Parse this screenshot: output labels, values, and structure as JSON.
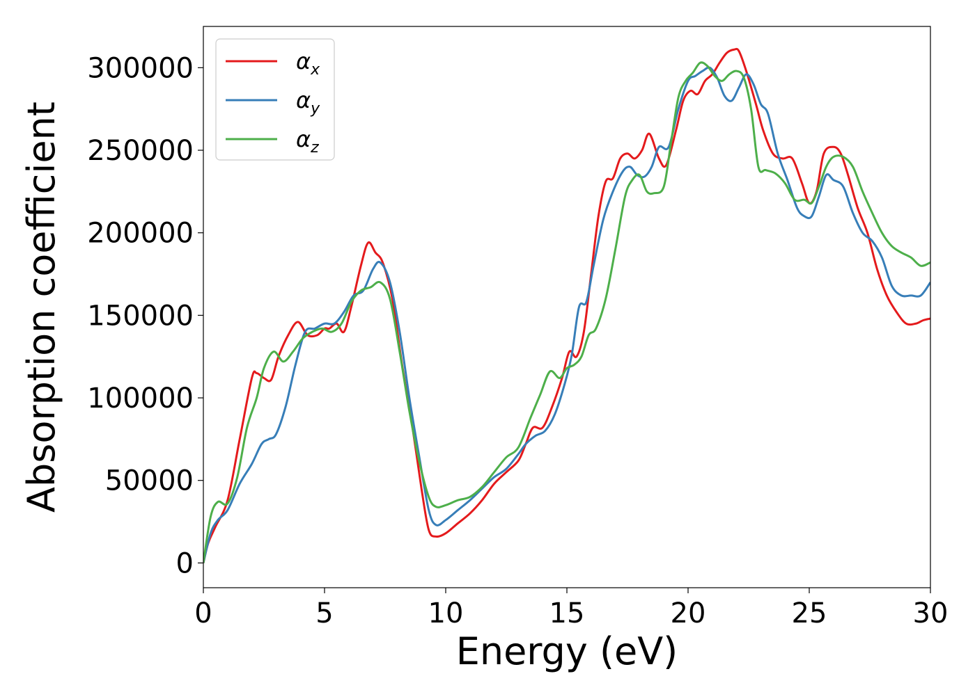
{
  "chart_data": {
    "type": "line",
    "xlabel": "Energy (eV)",
    "ylabel": "Absorption coefficient",
    "xlim": [
      0,
      30
    ],
    "ylim": [
      -15000,
      325000
    ],
    "xticks": [
      0,
      5,
      10,
      15,
      20,
      25,
      30
    ],
    "yticks": [
      0,
      50000,
      100000,
      150000,
      200000,
      250000,
      300000
    ],
    "xtick_labels": [
      "0",
      "5",
      "10",
      "15",
      "20",
      "25",
      "30"
    ],
    "ytick_labels": [
      "0",
      "50000",
      "100000",
      "150000",
      "200000",
      "250000",
      "300000"
    ],
    "grid": false,
    "legend_position": "top-left",
    "series": [
      {
        "name": "α",
        "subscript": "x",
        "color": "#e41a1c",
        "x": [
          0,
          0.2,
          0.5,
          1.0,
          1.5,
          2.0,
          2.2,
          2.5,
          2.8,
          3.1,
          3.5,
          3.9,
          4.3,
          4.7,
          5.0,
          5.2,
          5.5,
          5.8,
          6.1,
          6.5,
          6.8,
          7.1,
          7.4,
          7.8,
          8.2,
          8.6,
          9.0,
          9.3,
          9.6,
          10.0,
          10.5,
          11.0,
          11.5,
          12.0,
          12.5,
          13.0,
          13.3,
          13.6,
          14.0,
          14.4,
          14.8,
          15.1,
          15.4,
          15.7,
          16.0,
          16.3,
          16.6,
          16.9,
          17.2,
          17.5,
          17.8,
          18.1,
          18.4,
          18.8,
          19.1,
          19.5,
          19.8,
          20.1,
          20.4,
          20.7,
          21.0,
          21.3,
          21.6,
          21.9,
          22.1,
          22.4,
          22.8,
          23.1,
          23.5,
          23.9,
          24.3,
          24.7,
          25.0,
          25.3,
          25.6,
          26.0,
          26.3,
          26.6,
          27.0,
          27.4,
          27.8,
          28.2,
          28.6,
          29.0,
          29.4,
          29.7,
          30.0
        ],
        "values": [
          0,
          12000,
          22000,
          38000,
          75000,
          112000,
          115000,
          112000,
          111000,
          125000,
          138000,
          146000,
          138000,
          138000,
          142000,
          142000,
          145000,
          140000,
          155000,
          180000,
          194000,
          188000,
          182000,
          160000,
          120000,
          85000,
          45000,
          20000,
          16000,
          18000,
          24000,
          30000,
          38000,
          48000,
          55000,
          62000,
          72000,
          82000,
          82000,
          95000,
          112000,
          128000,
          125000,
          140000,
          175000,
          210000,
          231000,
          233000,
          245000,
          248000,
          245000,
          250000,
          260000,
          245000,
          241000,
          262000,
          280000,
          286000,
          284000,
          292000,
          296000,
          303000,
          309000,
          311000,
          310000,
          298000,
          278000,
          262000,
          248000,
          245000,
          245000,
          230000,
          218000,
          225000,
          248000,
          252000,
          248000,
          235000,
          215000,
          200000,
          178000,
          162000,
          152000,
          145000,
          145000,
          147000,
          148000
        ]
      },
      {
        "name": "α",
        "subscript": "y",
        "color": "#377eb8",
        "x": [
          0,
          0.3,
          0.6,
          1.0,
          1.5,
          2.0,
          2.4,
          2.7,
          3.0,
          3.4,
          3.8,
          4.2,
          4.6,
          5.0,
          5.4,
          5.8,
          6.2,
          6.6,
          7.0,
          7.3,
          7.7,
          8.1,
          8.5,
          8.9,
          9.3,
          9.6,
          10.0,
          10.5,
          11.0,
          11.5,
          12.0,
          12.5,
          13.0,
          13.3,
          13.7,
          14.1,
          14.5,
          14.9,
          15.2,
          15.5,
          15.8,
          16.1,
          16.5,
          16.9,
          17.3,
          17.6,
          17.9,
          18.2,
          18.5,
          18.8,
          19.2,
          19.6,
          20.0,
          20.3,
          20.6,
          20.9,
          21.2,
          21.5,
          21.8,
          22.1,
          22.4,
          22.7,
          23.0,
          23.3,
          23.7,
          24.1,
          24.5,
          24.8,
          25.1,
          25.4,
          25.7,
          26.0,
          26.4,
          26.8,
          27.2,
          27.6,
          28.0,
          28.4,
          28.8,
          29.2,
          29.6,
          30.0
        ],
        "values": [
          0,
          18000,
          26000,
          32000,
          48000,
          60000,
          72000,
          75000,
          78000,
          95000,
          120000,
          140000,
          142000,
          145000,
          145000,
          152000,
          162000,
          165000,
          178000,
          182000,
          170000,
          140000,
          100000,
          65000,
          32000,
          23000,
          26000,
          32000,
          38000,
          45000,
          52000,
          57000,
          66000,
          72000,
          77000,
          80000,
          90000,
          108000,
          126000,
          155000,
          158000,
          180000,
          208000,
          225000,
          237000,
          240000,
          235000,
          234000,
          240000,
          252000,
          252000,
          275000,
          292000,
          295000,
          298000,
          300000,
          294000,
          283000,
          280000,
          288000,
          296000,
          290000,
          278000,
          272000,
          248000,
          232000,
          215000,
          210000,
          210000,
          222000,
          235000,
          232000,
          228000,
          212000,
          200000,
          195000,
          185000,
          168000,
          162000,
          162000,
          162000,
          170000
        ]
      },
      {
        "name": "α",
        "subscript": "z",
        "color": "#4daf4a",
        "x": [
          0,
          0.3,
          0.6,
          1.0,
          1.4,
          1.8,
          2.2,
          2.5,
          2.9,
          3.3,
          3.7,
          4.1,
          4.5,
          4.9,
          5.3,
          5.7,
          6.1,
          6.5,
          6.9,
          7.3,
          7.7,
          8.1,
          8.5,
          8.9,
          9.3,
          9.6,
          10.0,
          10.5,
          11.0,
          11.5,
          12.0,
          12.5,
          13.0,
          13.5,
          13.9,
          14.3,
          14.7,
          15.0,
          15.3,
          15.6,
          15.9,
          16.2,
          16.6,
          17.0,
          17.4,
          17.7,
          18.0,
          18.3,
          18.6,
          19.0,
          19.3,
          19.6,
          19.9,
          20.2,
          20.5,
          20.8,
          21.1,
          21.4,
          21.7,
          22.0,
          22.3,
          22.6,
          22.9,
          23.2,
          23.6,
          24.0,
          24.4,
          24.8,
          25.1,
          25.4,
          25.7,
          26.0,
          26.4,
          26.8,
          27.2,
          27.6,
          28.0,
          28.4,
          28.8,
          29.2,
          29.6,
          30.0
        ],
        "values": [
          0,
          28000,
          37000,
          36000,
          52000,
          82000,
          100000,
          118000,
          128000,
          122000,
          128000,
          136000,
          140000,
          142000,
          140000,
          145000,
          158000,
          165000,
          167000,
          170000,
          160000,
          128000,
          92000,
          62000,
          40000,
          34000,
          35000,
          38000,
          40000,
          46000,
          55000,
          64000,
          70000,
          88000,
          102000,
          116000,
          112000,
          118000,
          120000,
          125000,
          138000,
          142000,
          160000,
          190000,
          222000,
          232000,
          235000,
          225000,
          224000,
          228000,
          255000,
          282000,
          292000,
          297000,
          303000,
          301000,
          295000,
          292000,
          296000,
          298000,
          294000,
          275000,
          240000,
          238000,
          236000,
          230000,
          220000,
          220000,
          218000,
          228000,
          240000,
          246000,
          246000,
          240000,
          225000,
          212000,
          200000,
          192000,
          188000,
          185000,
          180000,
          182000
        ]
      }
    ]
  }
}
